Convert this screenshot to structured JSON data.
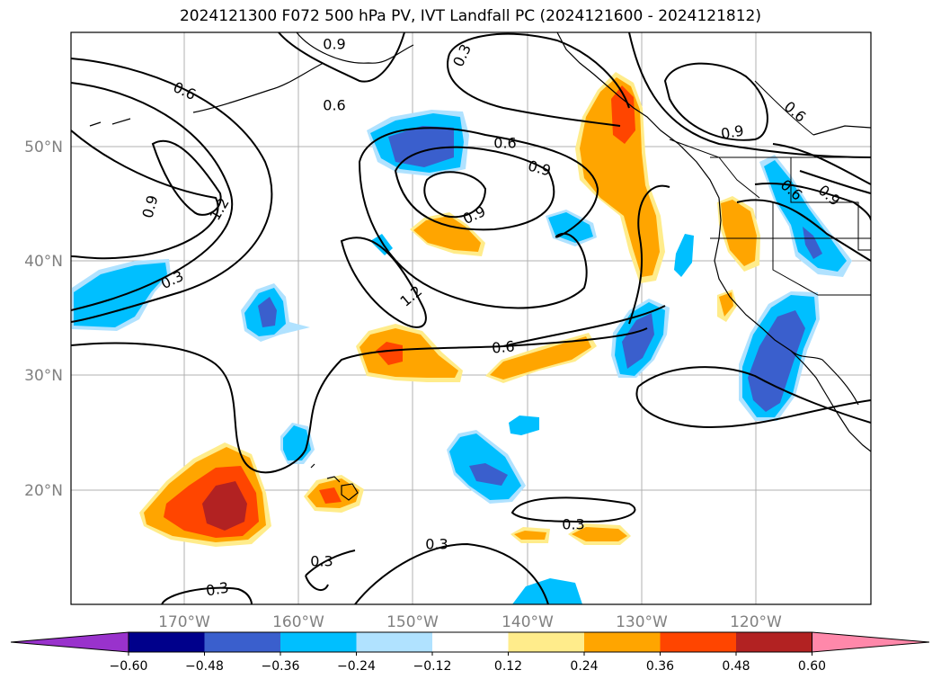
{
  "title": "2024121300 F072 500 hPa PV, IVT Landfall PC (2024121600 - 2024121812)",
  "map": {
    "lon_labels": [
      "170°W",
      "160°W",
      "150°W",
      "140°W",
      "130°W",
      "120°W"
    ],
    "lat_labels": [
      "50°N",
      "40°N",
      "30°N",
      "20°N"
    ],
    "contour_labels": [
      "0.9",
      "0.6",
      "0.6",
      "0.3",
      "0.6",
      "0.9",
      "0.6",
      "0.9",
      "1.2",
      "0.9",
      "0.6",
      "0.9",
      "0.9",
      "1.2",
      "0.6",
      "0.3",
      "0.3",
      "0.3",
      "0.3",
      "0.3"
    ]
  },
  "colorbar": {
    "colors": [
      "#9932cc",
      "#00008b",
      "#3a5fcd",
      "#00bfff",
      "#b0e2ff",
      "#ffffff",
      "#ffec8b",
      "#ffa500",
      "#ff4500",
      "#b22222",
      "#ff88aa"
    ],
    "tick_labels": [
      "−0.60",
      "−0.48",
      "−0.36",
      "−0.24",
      "−0.12",
      "0.12",
      "0.24",
      "0.36",
      "0.48",
      "0.60"
    ]
  }
}
